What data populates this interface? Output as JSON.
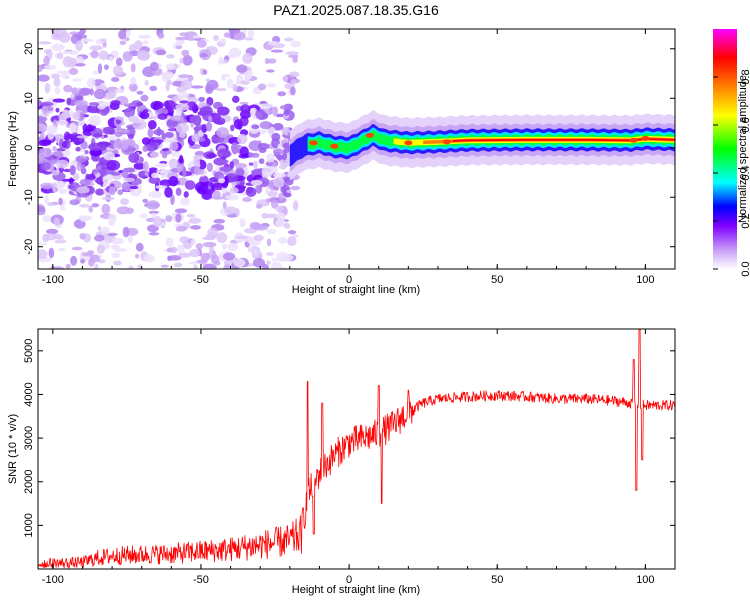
{
  "title": "PAZ1.2025.087.18.35.G16",
  "chart_data": [
    {
      "type": "heatmap",
      "xlabel": "Height of straight line (km)",
      "ylabel": "Frequency (Hz)",
      "xlim": [
        -105,
        110
      ],
      "ylim": [
        -24.5,
        24
      ],
      "xticks": [
        "-100",
        "-50",
        "0",
        "50",
        "100"
      ],
      "yticks": [
        "20",
        "10",
        "0",
        "-10",
        "-20"
      ],
      "colorbar": {
        "label": "Normalized spectral amplitude",
        "range": [
          0.0,
          1.0
        ],
        "ticks": [
          "0.0",
          "0.2",
          "0.4",
          "0.6",
          "0.8"
        ],
        "colors": [
          "#ffffff",
          "#c79cf7",
          "#7f00ff",
          "#0000ff",
          "#00ffff",
          "#00ff00",
          "#ffff00",
          "#ff7f00",
          "#ff0000",
          "#ff00ff"
        ]
      },
      "structure": {
        "noise_region_x": [
          -105,
          -18
        ],
        "signal_track_x": [
          -20,
          110
        ],
        "signal_frequency_hz": [
          [
            -20,
            -1.5
          ],
          [
            -15,
            0.5
          ],
          [
            -10,
            1.0
          ],
          [
            -5,
            0.2
          ],
          [
            0,
            0.0
          ],
          [
            5,
            1.5
          ],
          [
            8,
            2.5
          ],
          [
            12,
            1.5
          ],
          [
            20,
            1.0
          ],
          [
            30,
            1.2
          ],
          [
            40,
            1.5
          ],
          [
            60,
            1.6
          ],
          [
            80,
            1.6
          ],
          [
            95,
            1.5
          ],
          [
            100,
            1.8
          ],
          [
            110,
            1.6
          ]
        ]
      }
    },
    {
      "type": "line",
      "xlabel": "Height of straight line (km)",
      "ylabel": "SNR (10 * v/v)",
      "xlim": [
        -105,
        110
      ],
      "ylim": [
        0,
        5500
      ],
      "xticks": [
        "-100",
        "-50",
        "0",
        "50",
        "100"
      ],
      "yticks": [
        "1000",
        "2000",
        "3000",
        "4000",
        "5000"
      ],
      "series": [
        {
          "color": "#ff0000",
          "profile": [
            [
              -105,
              120
            ],
            [
              -90,
              150
            ],
            [
              -85,
              250
            ],
            [
              -80,
              300
            ],
            [
              -70,
              330
            ],
            [
              -60,
              350
            ],
            [
              -50,
              400
            ],
            [
              -40,
              450
            ],
            [
              -30,
              550
            ],
            [
              -20,
              650
            ],
            [
              -16,
              800
            ],
            [
              -14,
              1700
            ],
            [
              -10,
              2200
            ],
            [
              -5,
              2600
            ],
            [
              0,
              2900
            ],
            [
              5,
              3000
            ],
            [
              10,
              3100
            ],
            [
              15,
              3300
            ],
            [
              20,
              3600
            ],
            [
              25,
              3800
            ],
            [
              30,
              3900
            ],
            [
              40,
              3950
            ],
            [
              50,
              3980
            ],
            [
              60,
              3950
            ],
            [
              70,
              3900
            ],
            [
              80,
              3900
            ],
            [
              90,
              3850
            ],
            [
              95,
              3800
            ],
            [
              100,
              3750
            ],
            [
              110,
              3750
            ]
          ],
          "spikes": [
            [
              -14,
              4300
            ],
            [
              -12,
              800
            ],
            [
              -9,
              3800
            ],
            [
              10,
              4200
            ],
            [
              11,
              1500
            ],
            [
              20,
              4100
            ],
            [
              96,
              4800
            ],
            [
              97,
              1800
            ],
            [
              98,
              5500
            ],
            [
              99,
              2500
            ]
          ]
        }
      ]
    }
  ]
}
